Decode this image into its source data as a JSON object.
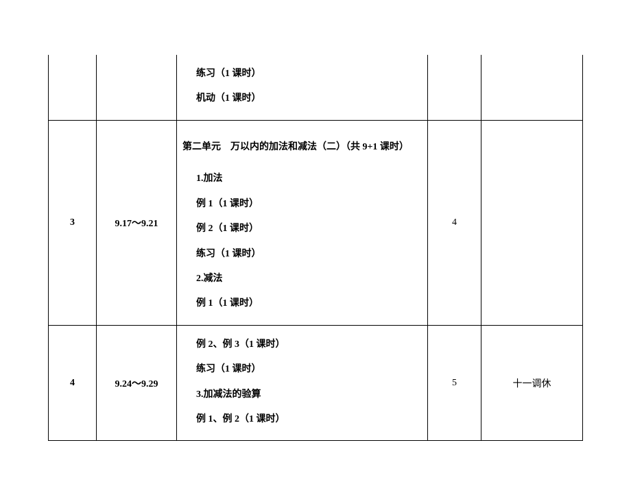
{
  "rows": [
    {
      "week": "",
      "date": "",
      "unit_header": "",
      "content_lines": [
        "练习（1 课时）",
        "机动（1 课时）"
      ],
      "count": "",
      "remark": ""
    },
    {
      "week": "3",
      "date": "9.17～9.21",
      "unit_header": "第二单元　万以内的加法和减法（二）（共 9+1 课时）",
      "content_lines": [
        "1.加法",
        "例 1（1 课时）",
        "例 2（1 课时）",
        "练习（1 课时）",
        "2.减法",
        "例 1（1 课时）"
      ],
      "count": "4",
      "remark": ""
    },
    {
      "week": "4",
      "date": "9.24～9.29",
      "unit_header": "",
      "content_lines": [
        "例 2、例 3（1 课时）",
        "练习（1 课时）",
        "3.加减法的验算",
        "例 1、例 2（1 课时）"
      ],
      "count": "5",
      "remark": "十一调休"
    }
  ]
}
